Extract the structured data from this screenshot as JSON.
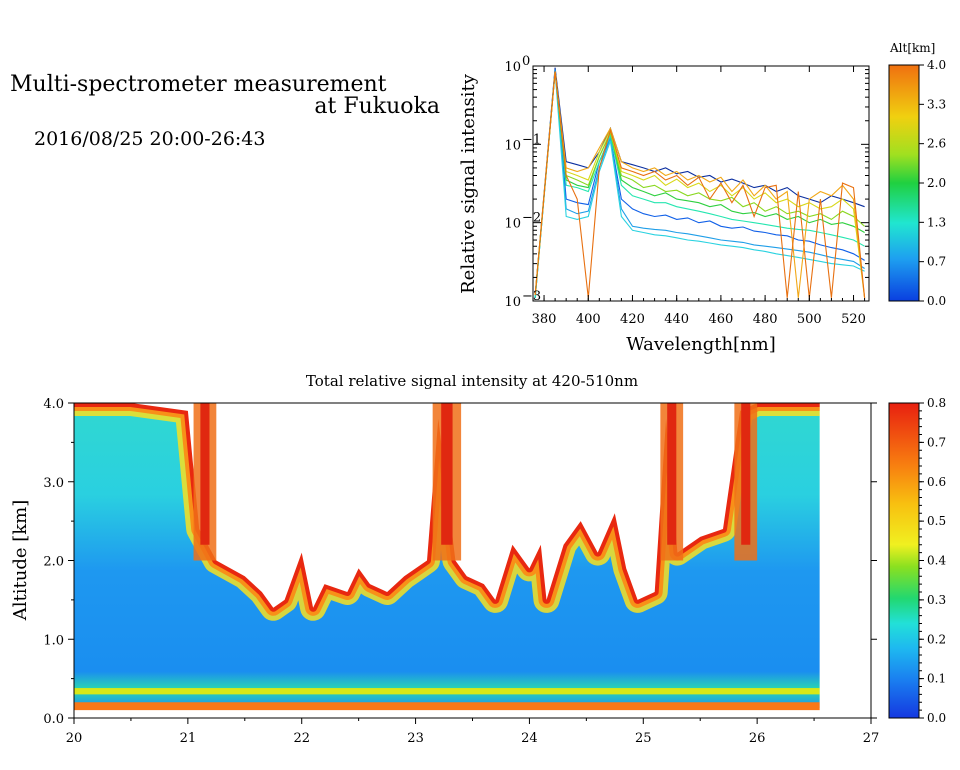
{
  "header": {
    "title_line1": "Multi-spectrometer measurement",
    "title_line2": "at Fukuoka",
    "datetime": "2016/08/25 20:00-26:43"
  },
  "chart_data": [
    {
      "type": "line",
      "title": "",
      "xlabel": "Wavelength[nm]",
      "ylabel": "Relative signal intensity",
      "xlim": [
        375,
        527
      ],
      "ylim": [
        0.001,
        1
      ],
      "yscale": "log",
      "x_ticks": [
        "380",
        "400",
        "420",
        "440",
        "460",
        "480",
        "500",
        "520"
      ],
      "y_ticks": [
        "10",
        "10",
        "10",
        "10"
      ],
      "y_tick_exponents": [
        "0",
        "−1",
        "−2",
        "−3"
      ],
      "colorbar": {
        "title": "Alt[km]",
        "ticks": [
          "4.0",
          "3.3",
          "2.6",
          "2.0",
          "1.3",
          "0.7",
          "0.0"
        ],
        "range": [
          0,
          4
        ]
      },
      "x": [
        376,
        385,
        390,
        395,
        400,
        405,
        410,
        415,
        420,
        425,
        430,
        435,
        440,
        445,
        450,
        455,
        460,
        465,
        470,
        475,
        480,
        485,
        490,
        495,
        500,
        505,
        510,
        515,
        520,
        525
      ],
      "series": [
        {
          "alt": 0.0,
          "color": "#0b2fa0",
          "values": [
            0.0012,
            0.95,
            0.06,
            0.055,
            0.05,
            0.08,
            0.16,
            0.06,
            0.055,
            0.05,
            0.045,
            0.05,
            0.042,
            0.045,
            0.038,
            0.04,
            0.033,
            0.036,
            0.032,
            0.028,
            0.03,
            0.025,
            0.028,
            0.022,
            0.02,
            0.018,
            0.022,
            0.02,
            0.018,
            0.016
          ]
        },
        {
          "alt": 0.3,
          "color": "#1060e8",
          "values": [
            0.0011,
            0.9,
            0.02,
            0.018,
            0.017,
            0.06,
            0.12,
            0.02,
            0.015,
            0.013,
            0.012,
            0.0125,
            0.011,
            0.0115,
            0.01,
            0.0105,
            0.009,
            0.0085,
            0.0088,
            0.0078,
            0.0075,
            0.007,
            0.0068,
            0.006,
            0.0058,
            0.0052,
            0.0048,
            0.0045,
            0.004,
            0.0033
          ]
        },
        {
          "alt": 0.7,
          "color": "#1f9ee8",
          "values": [
            0.0011,
            0.9,
            0.015,
            0.013,
            0.014,
            0.05,
            0.12,
            0.015,
            0.009,
            0.0085,
            0.0082,
            0.008,
            0.0075,
            0.0072,
            0.0068,
            0.0064,
            0.006,
            0.0058,
            0.0056,
            0.0052,
            0.005,
            0.0048,
            0.0046,
            0.0044,
            0.0042,
            0.0039,
            0.0036,
            0.0034,
            0.0032,
            0.0026
          ]
        },
        {
          "alt": 1.0,
          "color": "#2ad2e0",
          "values": [
            0.0011,
            0.85,
            0.012,
            0.011,
            0.012,
            0.045,
            0.11,
            0.012,
            0.008,
            0.0075,
            0.007,
            0.0068,
            0.0064,
            0.006,
            0.0058,
            0.0055,
            0.0052,
            0.005,
            0.0048,
            0.0045,
            0.0043,
            0.004,
            0.0038,
            0.0036,
            0.0034,
            0.0032,
            0.003,
            0.0029,
            0.0028,
            0.0024
          ]
        },
        {
          "alt": 1.3,
          "color": "#25e6b0",
          "values": [
            0.0011,
            0.85,
            0.03,
            0.028,
            0.025,
            0.06,
            0.13,
            0.03,
            0.022,
            0.02,
            0.018,
            0.018,
            0.016,
            0.015,
            0.014,
            0.013,
            0.012,
            0.011,
            0.0105,
            0.01,
            0.0095,
            0.009,
            0.0085,
            0.0082,
            0.008,
            0.0075,
            0.007,
            0.0065,
            0.006,
            0.005
          ]
        },
        {
          "alt": 1.7,
          "color": "#2fd040",
          "values": [
            0.0012,
            0.85,
            0.035,
            0.03,
            0.028,
            0.07,
            0.14,
            0.035,
            0.028,
            0.025,
            0.022,
            0.024,
            0.02,
            0.019,
            0.018,
            0.016,
            0.017,
            0.014,
            0.013,
            0.0135,
            0.012,
            0.013,
            0.011,
            0.012,
            0.01,
            0.011,
            0.0095,
            0.01,
            0.009,
            0.0075
          ]
        },
        {
          "alt": 2.0,
          "color": "#8ad820",
          "values": [
            0.0012,
            0.85,
            0.04,
            0.035,
            0.03,
            0.07,
            0.14,
            0.04,
            0.035,
            0.028,
            0.03,
            0.025,
            0.026,
            0.022,
            0.024,
            0.02,
            0.019,
            0.021,
            0.016,
            0.018,
            0.014,
            0.016,
            0.013,
            0.014,
            0.012,
            0.013,
            0.011,
            0.014,
            0.012,
            0.009
          ]
        },
        {
          "alt": 2.6,
          "color": "#d8d818",
          "values": [
            0.0012,
            0.85,
            0.045,
            0.04,
            0.035,
            0.08,
            0.15,
            0.045,
            0.04,
            0.035,
            0.04,
            0.03,
            0.036,
            0.028,
            0.032,
            0.025,
            0.03,
            0.022,
            0.028,
            0.02,
            0.024,
            0.018,
            0.02,
            0.016,
            0.018,
            0.015,
            0.016,
            0.02,
            0.015,
            0.0011
          ]
        },
        {
          "alt": 3.3,
          "color": "#f2a818",
          "values": [
            0.0012,
            0.85,
            0.05,
            0.045,
            0.05,
            0.09,
            0.16,
            0.06,
            0.05,
            0.045,
            0.05,
            0.04,
            0.045,
            0.035,
            0.04,
            0.033,
            0.038,
            0.025,
            0.035,
            0.022,
            0.03,
            0.02,
            0.025,
            0.0011,
            0.02,
            0.025,
            0.022,
            0.03,
            0.02,
            0.0011
          ]
        },
        {
          "alt": 4.0,
          "color": "#e87010",
          "values": [
            0.0012,
            0.85,
            0.04,
            0.02,
            0.0011,
            0.05,
            0.15,
            0.05,
            0.045,
            0.04,
            0.045,
            0.035,
            0.04,
            0.03,
            0.038,
            0.02,
            0.032,
            0.018,
            0.03,
            0.012,
            0.028,
            0.03,
            0.0011,
            0.025,
            0.0011,
            0.02,
            0.0011,
            0.032,
            0.028,
            0.0011
          ]
        }
      ]
    },
    {
      "type": "heatmap",
      "title": "Total relative signal intensity at 420-510nm",
      "xlabel": "",
      "ylabel": "Altitude [km]",
      "xlim": [
        20,
        27
      ],
      "ylim": [
        0,
        4
      ],
      "x_ticks": [
        "20",
        "21",
        "22",
        "23",
        "24",
        "25",
        "26",
        "27"
      ],
      "y_ticks": [
        "0.0",
        "1.0",
        "2.0",
        "3.0",
        "4.0"
      ],
      "colorbar": {
        "ticks": [
          "0.0",
          "0.1",
          "0.2",
          "0.3",
          "0.4",
          "0.5",
          "0.6",
          "0.7",
          "0.8"
        ],
        "range": [
          0,
          0.8
        ]
      },
      "data_x_range": [
        20,
        26.55
      ],
      "cloud_base_km": [
        [
          20.0,
          4.0
        ],
        [
          20.5,
          4.0
        ],
        [
          21.0,
          3.9
        ],
        [
          21.1,
          2.4
        ],
        [
          21.25,
          2.0
        ],
        [
          21.5,
          1.8
        ],
        [
          21.65,
          1.6
        ],
        [
          21.75,
          1.4
        ],
        [
          21.85,
          1.5
        ],
        [
          22.0,
          2.1
        ],
        [
          22.1,
          1.4
        ],
        [
          22.2,
          1.7
        ],
        [
          22.4,
          1.6
        ],
        [
          22.5,
          1.9
        ],
        [
          22.6,
          1.7
        ],
        [
          22.75,
          1.6
        ],
        [
          22.9,
          1.8
        ],
        [
          23.0,
          1.9
        ],
        [
          23.1,
          2.0
        ],
        [
          23.2,
          3.8
        ],
        [
          23.35,
          2.0
        ],
        [
          23.45,
          1.8
        ],
        [
          23.6,
          1.7
        ],
        [
          23.7,
          1.5
        ],
        [
          23.85,
          2.2
        ],
        [
          24.0,
          1.9
        ],
        [
          24.1,
          2.2
        ],
        [
          24.15,
          1.5
        ],
        [
          24.3,
          2.2
        ],
        [
          24.45,
          2.5
        ],
        [
          24.6,
          2.1
        ],
        [
          24.75,
          2.6
        ],
        [
          24.85,
          1.9
        ],
        [
          24.95,
          1.5
        ],
        [
          25.1,
          1.6
        ],
        [
          25.2,
          3.8
        ],
        [
          25.3,
          2.1
        ],
        [
          25.5,
          2.3
        ],
        [
          25.7,
          2.4
        ],
        [
          25.85,
          3.9
        ],
        [
          26.0,
          4.0
        ],
        [
          26.55,
          4.0
        ]
      ],
      "low_cloud_x_ranges": [
        [
          21.05,
          21.25
        ],
        [
          23.15,
          23.4
        ],
        [
          25.15,
          25.35
        ],
        [
          25.8,
          26.0
        ]
      ]
    }
  ]
}
